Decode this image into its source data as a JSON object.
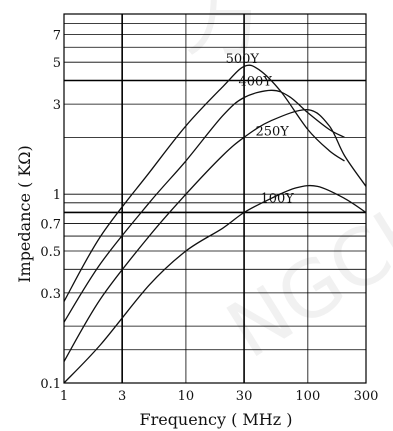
{
  "chart_data": {
    "type": "line",
    "title": "",
    "xlabel": "Frequency ( MHz )",
    "ylabel": "Impedance ( KΩ)",
    "x_scale": "log",
    "y_scale": "log",
    "xlim": [
      1,
      300
    ],
    "ylim": [
      0.1,
      9
    ],
    "grid": true,
    "x_ticks": [
      {
        "value": 1,
        "label": "1"
      },
      {
        "value": 3,
        "label": "3"
      },
      {
        "value": 10,
        "label": "10"
      },
      {
        "value": 30,
        "label": "30"
      },
      {
        "value": 100,
        "label": "100"
      },
      {
        "value": 300,
        "label": "300"
      }
    ],
    "y_ticks": [
      {
        "value": 0.1,
        "label": "0.1"
      },
      {
        "value": 0.3,
        "label": "0.3"
      },
      {
        "value": 0.5,
        "label": "0.5"
      },
      {
        "value": 0.7,
        "label": "0.7"
      },
      {
        "value": 1,
        "label": "1"
      },
      {
        "value": 3,
        "label": "3"
      },
      {
        "value": 5,
        "label": "5"
      },
      {
        "value": 7,
        "label": "7"
      }
    ],
    "x_grid": [
      1,
      3,
      10,
      30,
      100,
      300
    ],
    "x_grid_major": [
      3,
      30
    ],
    "y_grid": [
      0.1,
      0.15,
      0.2,
      0.3,
      0.4,
      0.5,
      0.6,
      0.7,
      0.8,
      0.9,
      1,
      2,
      3,
      4,
      5,
      6,
      7,
      8,
      9
    ],
    "y_grid_major": [
      0.8,
      4
    ],
    "series": [
      {
        "name": "500Y",
        "x": [
          1,
          2,
          5,
          10,
          20,
          30,
          40,
          60,
          100,
          150,
          200
        ],
        "y": [
          0.27,
          0.6,
          1.3,
          2.3,
          3.7,
          4.75,
          4.55,
          3.5,
          2.2,
          1.7,
          1.5
        ]
      },
      {
        "name": "400Y",
        "x": [
          1,
          2,
          5,
          10,
          20,
          30,
          50,
          70,
          100,
          150,
          200
        ],
        "y": [
          0.21,
          0.43,
          0.9,
          1.5,
          2.6,
          3.25,
          3.55,
          3.3,
          2.7,
          2.2,
          2.0
        ]
      },
      {
        "name": "250Y",
        "x": [
          1,
          2,
          5,
          10,
          20,
          30,
          50,
          100,
          150,
          200,
          300
        ],
        "y": [
          0.13,
          0.28,
          0.6,
          1.0,
          1.6,
          2.0,
          2.45,
          2.8,
          2.3,
          1.6,
          1.1
        ]
      },
      {
        "name": "100Y",
        "x": [
          1,
          2,
          5,
          10,
          20,
          30,
          50,
          80,
          120,
          200,
          300
        ],
        "y": [
          0.1,
          0.16,
          0.33,
          0.5,
          0.66,
          0.8,
          0.95,
          1.08,
          1.1,
          0.95,
          0.8
        ]
      }
    ],
    "series_labels": [
      "500Y",
      "400Y",
      "250Y",
      "100Y"
    ]
  }
}
